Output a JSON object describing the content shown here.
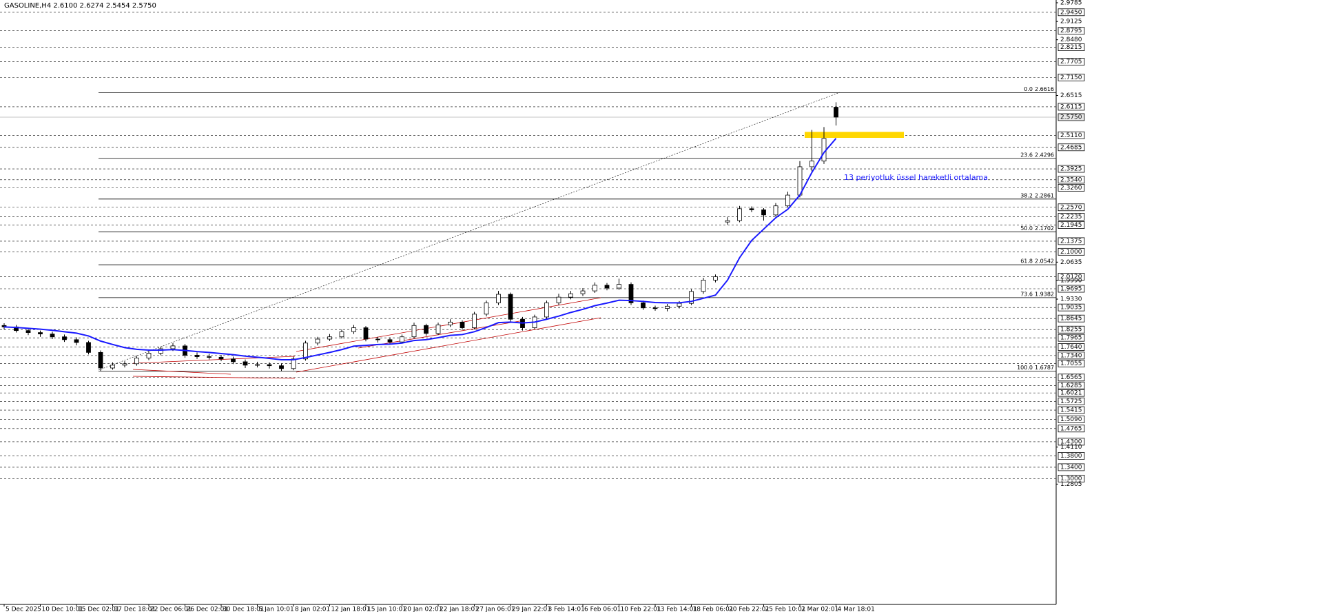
{
  "chart_data": {
    "type": "candlestick",
    "title": "GASOLINE,H4  2.6100 2.6274 2.5454 2.5750",
    "categories": [
      "5 Dec 2025",
      null,
      null,
      "10 Dec 10:01",
      null,
      null,
      "15 Dec 02:01",
      null,
      null,
      "17 Dec 18:01",
      null,
      null,
      "22 Dec 06:01",
      null,
      null,
      "26 Dec 02:01",
      null,
      null,
      "30 Dec 18:01",
      null,
      null,
      "5 Jan 10:01",
      null,
      null,
      "8 Jan 02:01",
      null,
      null,
      "12 Jan 18:01",
      null,
      null,
      "15 Jan 10:01",
      null,
      null,
      "20 Jan 02:01",
      null,
      null,
      "22 Jan 18:01",
      null,
      null,
      "27 Jan 06:01",
      null,
      null,
      "29 Jan 22:01",
      null,
      null,
      "3 Feb 14:01",
      null,
      null,
      "6 Feb 06:01",
      null,
      null,
      "10 Feb 22:01",
      null,
      null,
      "13 Feb 14:01",
      null,
      null,
      "18 Feb 06:01",
      null,
      null,
      "20 Feb 22:01",
      null,
      null,
      "25 Feb 10:01",
      null,
      null,
      "2 Mar 02:01",
      null,
      null,
      "4 Mar 18:01"
    ],
    "open": [
      1.84,
      1.835,
      1.822,
      1.815,
      1.81,
      1.8,
      1.79,
      1.78,
      1.745,
      1.69,
      1.7,
      1.705,
      1.725,
      1.742,
      1.758,
      1.768,
      1.735,
      1.73,
      1.728,
      1.722,
      1.712,
      1.7,
      1.702,
      1.698,
      1.688,
      1.722,
      1.778,
      1.792,
      1.8,
      1.818,
      1.832,
      1.792,
      1.79,
      1.782,
      1.8,
      1.84,
      1.812,
      1.842,
      1.852,
      1.832,
      1.88,
      1.92,
      1.95,
      1.862,
      1.832,
      1.87,
      1.92,
      1.94,
      1.952,
      1.962,
      1.982,
      1.972,
      1.985,
      1.92,
      1.902,
      1.9,
      1.908,
      1.918,
      1.96,
      2.0,
      2.205,
      2.21,
      2.252,
      2.248,
      2.23,
      2.262,
      2.3,
      2.4,
      2.42,
      2.61
    ],
    "high": [
      1.848,
      1.842,
      1.83,
      1.822,
      1.818,
      1.808,
      1.798,
      1.786,
      1.752,
      1.71,
      1.714,
      1.732,
      1.75,
      1.765,
      1.778,
      1.775,
      1.745,
      1.74,
      1.736,
      1.73,
      1.72,
      1.712,
      1.71,
      1.706,
      1.73,
      1.786,
      1.8,
      1.81,
      1.826,
      1.842,
      1.838,
      1.8,
      1.798,
      1.808,
      1.85,
      1.846,
      1.85,
      1.862,
      1.858,
      1.888,
      1.928,
      1.962,
      1.956,
      1.87,
      1.878,
      1.928,
      1.952,
      1.962,
      1.972,
      1.992,
      1.99,
      2.005,
      1.992,
      1.928,
      1.91,
      1.916,
      1.926,
      1.968,
      2.008,
      2.02,
      2.222,
      2.262,
      2.26,
      2.254,
      2.272,
      2.312,
      2.42,
      2.53,
      2.54,
      2.6274
    ],
    "low": [
      1.826,
      1.815,
      1.806,
      1.8,
      1.792,
      1.782,
      1.77,
      1.738,
      1.68,
      1.684,
      1.692,
      1.698,
      1.718,
      1.735,
      1.75,
      1.726,
      1.722,
      1.72,
      1.714,
      1.704,
      1.69,
      1.692,
      1.688,
      1.68,
      1.682,
      1.716,
      1.77,
      1.785,
      1.794,
      1.81,
      1.784,
      1.78,
      1.774,
      1.776,
      1.795,
      1.804,
      1.806,
      1.835,
      1.825,
      1.826,
      1.872,
      1.912,
      1.852,
      1.822,
      1.826,
      1.862,
      1.912,
      1.932,
      1.944,
      1.955,
      1.964,
      1.965,
      1.912,
      1.895,
      1.892,
      1.89,
      1.9,
      1.912,
      1.952,
      1.992,
      2.196,
      2.204,
      2.24,
      2.21,
      2.224,
      2.256,
      2.292,
      2.38,
      2.41,
      2.5454
    ],
    "close": [
      1.835,
      1.822,
      1.815,
      1.81,
      1.8,
      1.79,
      1.78,
      1.745,
      1.69,
      1.7,
      1.705,
      1.725,
      1.742,
      1.758,
      1.768,
      1.735,
      1.73,
      1.728,
      1.722,
      1.712,
      1.7,
      1.702,
      1.698,
      1.688,
      1.722,
      1.778,
      1.792,
      1.8,
      1.818,
      1.832,
      1.792,
      1.79,
      1.782,
      1.8,
      1.84,
      1.812,
      1.842,
      1.852,
      1.832,
      1.88,
      1.92,
      1.95,
      1.862,
      1.832,
      1.87,
      1.92,
      1.94,
      1.952,
      1.962,
      1.982,
      1.972,
      1.985,
      1.92,
      1.902,
      1.9,
      1.908,
      1.918,
      1.96,
      2.0,
      2.012,
      2.21,
      2.252,
      2.248,
      2.23,
      2.262,
      2.3,
      2.4,
      2.42,
      2.5,
      2.575
    ],
    "ema": {
      "color": "#1a1aff",
      "values": [
        1.835,
        1.833,
        1.83,
        1.827,
        1.823,
        1.818,
        1.813,
        1.803,
        1.785,
        1.773,
        1.762,
        1.756,
        1.753,
        1.753,
        1.755,
        1.752,
        1.748,
        1.745,
        1.741,
        1.737,
        1.732,
        1.728,
        1.724,
        1.719,
        1.719,
        1.727,
        1.736,
        1.745,
        1.755,
        1.767,
        1.77,
        1.773,
        1.774,
        1.778,
        1.787,
        1.79,
        1.797,
        1.805,
        1.808,
        1.818,
        1.833,
        1.85,
        1.852,
        1.849,
        1.852,
        1.862,
        1.873,
        1.886,
        1.897,
        1.91,
        1.919,
        1.929,
        1.928,
        1.925,
        1.921,
        1.92,
        1.92,
        1.925,
        1.936,
        1.947,
        2.0,
        2.079,
        2.14,
        2.18,
        2.22,
        2.25,
        2.3,
        2.38,
        2.45,
        2.5
      ]
    },
    "annotation": "13 periyotluk üssel hareketli ortalama",
    "zone": {
      "from": 2.502,
      "to": 2.523,
      "color": "#ffd700"
    },
    "fibonacci": [
      {
        "level": "0.0",
        "value": 2.6616
      },
      {
        "level": "23.6",
        "value": 2.4296
      },
      {
        "level": "38.2",
        "value": 2.2861
      },
      {
        "level": "50.0",
        "value": 2.1702
      },
      {
        "level": "61.8",
        "value": 2.0542
      },
      {
        "level": "73.6",
        "value": 1.9382
      },
      {
        "level": "100.0",
        "value": 1.6787
      }
    ],
    "last_price": {
      "value": 2.575,
      "label": "2.5750"
    },
    "ylim": [
      0.856,
      2.9785
    ],
    "yticks": [
      {
        "value": 2.9785,
        "label": "2.9785"
      },
      {
        "value": 2.9125,
        "label": "2.9125"
      },
      {
        "value": 2.848,
        "label": "2.8480"
      },
      {
        "value": 2.6515,
        "label": "2.6515"
      },
      {
        "value": 2.0635,
        "label": "2.0635"
      },
      {
        "value": 1.999,
        "label": "1.9990"
      },
      {
        "value": 1.933,
        "label": "1.9330"
      },
      {
        "value": 1.411,
        "label": "1.4110"
      },
      {
        "value": 1.2805,
        "label": "1.2805"
      }
    ],
    "levels": [
      {
        "value": 2.945,
        "label": "2.9450"
      },
      {
        "value": 2.8795,
        "label": "2.8795"
      },
      {
        "value": 2.8215,
        "label": "2.8215"
      },
      {
        "value": 2.7705,
        "label": "2.7705"
      },
      {
        "value": 2.715,
        "label": "2.7150"
      },
      {
        "value": 2.6115,
        "label": "2.6115"
      },
      {
        "value": 2.511,
        "label": "2.5110"
      },
      {
        "value": 2.4685,
        "label": "2.4685"
      },
      {
        "value": 2.3925,
        "label": "2.3925"
      },
      {
        "value": 2.354,
        "label": "2.3540"
      },
      {
        "value": 2.326,
        "label": "2.3260"
      },
      {
        "value": 2.257,
        "label": "2.2570"
      },
      {
        "value": 2.2235,
        "label": "2.2235"
      },
      {
        "value": 2.1945,
        "label": "2.1945"
      },
      {
        "value": 2.1375,
        "label": "2.1375"
      },
      {
        "value": 2.1,
        "label": "2.1000"
      },
      {
        "value": 2.012,
        "label": "2.0120"
      },
      {
        "value": 1.9695,
        "label": "1.9695"
      },
      {
        "value": 1.9035,
        "label": "1.9035"
      },
      {
        "value": 1.8645,
        "label": "1.8645"
      },
      {
        "value": 1.8255,
        "label": "1.8255"
      },
      {
        "value": 1.7965,
        "label": "1.7965"
      },
      {
        "value": 1.764,
        "label": "1.7640"
      },
      {
        "value": 1.734,
        "label": "1.7340"
      },
      {
        "value": 1.7055,
        "label": "1.7055"
      },
      {
        "value": 1.6565,
        "label": "1.6565"
      },
      {
        "value": 1.6285,
        "label": "1.6285"
      },
      {
        "value": 1.6021,
        "label": "1.6021"
      },
      {
        "value": 1.5725,
        "label": "1.5725"
      },
      {
        "value": 1.5415,
        "label": "1.5415"
      },
      {
        "value": 1.509,
        "label": "1.5090"
      },
      {
        "value": 1.4765,
        "label": "1.4765"
      },
      {
        "value": 1.43,
        "label": "1.4300"
      },
      {
        "value": 1.38,
        "label": "1.3800"
      },
      {
        "value": 1.34,
        "label": "1.3400"
      },
      {
        "value": 1.3,
        "label": "1.3000"
      }
    ]
  }
}
